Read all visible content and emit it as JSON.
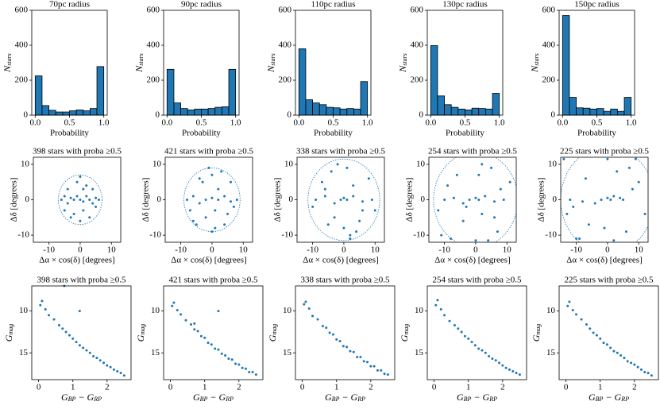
{
  "chart_data": [
    {
      "type": "histogram",
      "title": "70pc radius",
      "xlabel": "Probability",
      "ylabel": [
        "N",
        "stars"
      ],
      "color": "#1f77b4",
      "edgecolor": "#000000",
      "bins": [
        0,
        0.1,
        0.2,
        0.3,
        0.4,
        0.5,
        0.6,
        0.7,
        0.8,
        0.9,
        1.0
      ],
      "values": [
        225,
        55,
        28,
        18,
        18,
        25,
        30,
        25,
        38,
        278
      ],
      "xlim": [
        -0.05,
        1.05
      ],
      "ylim": [
        0,
        600
      ],
      "xticks": [
        {
          "value": 0,
          "label": "0.0"
        },
        0.5,
        {
          "value": 1,
          "label": "1.0"
        }
      ],
      "yticks": [
        0,
        200,
        400,
        600
      ]
    },
    {
      "type": "histogram",
      "title": "90pc radius",
      "xlabel": "Probability",
      "ylabel": [
        "N",
        "stars"
      ],
      "color": "#1f77b4",
      "edgecolor": "#000000",
      "bins": [
        0,
        0.1,
        0.2,
        0.3,
        0.4,
        0.5,
        0.6,
        0.7,
        0.8,
        0.9,
        1.0
      ],
      "values": [
        262,
        70,
        38,
        30,
        35,
        35,
        38,
        45,
        48,
        262
      ],
      "xlim": [
        -0.05,
        1.05
      ],
      "ylim": [
        0,
        600
      ],
      "xticks": [
        {
          "value": 0,
          "label": "0.0"
        },
        0.5,
        {
          "value": 1,
          "label": "1.0"
        }
      ],
      "yticks": [
        0,
        200,
        400,
        600
      ]
    },
    {
      "type": "histogram",
      "title": "110pc radius",
      "xlabel": "Probability",
      "ylabel": [
        "N",
        "stars"
      ],
      "color": "#1f77b4",
      "edgecolor": "#000000",
      "bins": [
        0,
        0.1,
        0.2,
        0.3,
        0.4,
        0.5,
        0.6,
        0.7,
        0.8,
        0.9,
        1.0
      ],
      "values": [
        380,
        88,
        70,
        60,
        45,
        42,
        35,
        38,
        35,
        192
      ],
      "xlim": [
        -0.05,
        1.05
      ],
      "ylim": [
        0,
        600
      ],
      "xticks": [
        {
          "value": 0,
          "label": "0.0"
        },
        0.5,
        {
          "value": 1,
          "label": "1.0"
        }
      ],
      "yticks": [
        0,
        200,
        400,
        600
      ]
    },
    {
      "type": "histogram",
      "title": "130pc radius",
      "xlabel": "Probability",
      "ylabel": [
        "N",
        "stars"
      ],
      "color": "#1f77b4",
      "edgecolor": "#000000",
      "bins": [
        0,
        0.1,
        0.2,
        0.3,
        0.4,
        0.5,
        0.6,
        0.7,
        0.8,
        0.9,
        1.0
      ],
      "values": [
        398,
        110,
        60,
        45,
        35,
        30,
        40,
        38,
        35,
        125
      ],
      "xlim": [
        -0.05,
        1.05
      ],
      "ylim": [
        0,
        600
      ],
      "xticks": [
        {
          "value": 0,
          "label": "0.0"
        },
        0.5,
        {
          "value": 1,
          "label": "1.0"
        }
      ],
      "yticks": [
        0,
        200,
        400,
        600
      ]
    },
    {
      "type": "histogram",
      "title": "150pc radius",
      "xlabel": "Probability",
      "ylabel": [
        "N",
        "stars"
      ],
      "color": "#1f77b4",
      "edgecolor": "#000000",
      "bins": [
        0,
        0.1,
        0.2,
        0.3,
        0.4,
        0.5,
        0.6,
        0.7,
        0.8,
        0.9,
        1.0
      ],
      "values": [
        570,
        102,
        42,
        40,
        35,
        38,
        22,
        35,
        22,
        102
      ],
      "xlim": [
        -0.05,
        1.05
      ],
      "ylim": [
        0,
        600
      ],
      "xticks": [
        {
          "value": 0,
          "label": "0.0"
        },
        0.5,
        {
          "value": 1,
          "label": "1.0"
        }
      ],
      "yticks": [
        0,
        200,
        400,
        600
      ]
    },
    {
      "type": "scatter",
      "title": "398 stars with proba ≥0.5",
      "xlabel": "Δα × cos(δ) [degrees]",
      "ylabel": "Δδ [degrees]",
      "color": "#1f77b4",
      "circle_radius": 7,
      "x": [
        -6,
        -5,
        -4,
        -3,
        -2,
        -1,
        0,
        1,
        2,
        3,
        4,
        5,
        6,
        -3,
        2,
        0,
        -1,
        1,
        -5,
        4,
        -2,
        3,
        0,
        -4,
        5,
        1
      ],
      "y": [
        0,
        1,
        -1,
        0.5,
        0,
        1,
        0,
        -0.5,
        1,
        0,
        -1,
        0.5,
        0,
        -5,
        4,
        -6,
        5,
        -3,
        -3,
        3,
        -4,
        -5,
        6.5,
        3,
        -2,
        3
      ],
      "xlim": [
        -15,
        13
      ],
      "ylim": [
        -12,
        12
      ],
      "xticks": [
        -10,
        0,
        10
      ],
      "yticks": [
        -10,
        0,
        10
      ]
    },
    {
      "type": "scatter",
      "title": "421 stars with proba ≥0.5",
      "xlabel": "Δα × cos(δ) [degrees]",
      "ylabel": "Δδ [degrees]",
      "color": "#1f77b4",
      "circle_radius": 9,
      "x": [
        -8,
        -6,
        -4,
        -2,
        0,
        2,
        4,
        6,
        8,
        -5,
        3,
        -1,
        1,
        -3,
        5,
        -7,
        6,
        0,
        -2,
        2,
        4,
        -4,
        7,
        -6,
        1,
        0
      ],
      "y": [
        0,
        1,
        -1,
        0,
        0.5,
        0,
        1,
        -0.5,
        0,
        -7,
        8,
        9,
        -8,
        5,
        -4,
        -3,
        5,
        -9,
        -5,
        3,
        -7,
        6,
        -2,
        -6,
        -3,
        7
      ],
      "xlim": [
        -15,
        13
      ],
      "ylim": [
        -12,
        12
      ],
      "xticks": [
        -10,
        0,
        10
      ],
      "yticks": [
        -10,
        0,
        10
      ]
    },
    {
      "type": "scatter",
      "title": "338 stars with proba ≥0.5",
      "xlabel": "Δα × cos(δ) [degrees]",
      "ylabel": "Δδ [degrees]",
      "color": "#1f77b4",
      "circle_radius": 11.5,
      "x": [
        -9,
        -6,
        -3,
        -1,
        0,
        1,
        3,
        6,
        9,
        -5,
        4,
        -2,
        2,
        -7,
        8,
        -10,
        10,
        0,
        -3,
        3,
        5,
        -6,
        1,
        -4,
        6,
        2
      ],
      "y": [
        0,
        1,
        -1,
        0,
        0.5,
        0,
        1,
        -0.5,
        0,
        -7,
        -9,
        10,
        -11,
        5,
        6,
        -2,
        -3,
        -8,
        -5,
        4,
        -6,
        3,
        9,
        8,
        -3,
        -10
      ],
      "xlim": [
        -15,
        13
      ],
      "ylim": [
        -12,
        12
      ],
      "xticks": [
        -10,
        0,
        10
      ],
      "yticks": [
        -10,
        0,
        10
      ]
    },
    {
      "type": "scatter",
      "title": "254 stars with proba ≥0.5",
      "xlabel": "Δα × cos(δ) [degrees]",
      "ylabel": "Δδ [degrees]",
      "color": "#1f77b4",
      "circle_radius": 13.5,
      "x": [
        -10,
        -7,
        -4,
        -2,
        0,
        1,
        3,
        6,
        9,
        -8,
        -11,
        4,
        2,
        -6,
        8,
        -12,
        11,
        0,
        -4,
        5,
        7,
        -9,
        1,
        -3,
        6,
        2
      ],
      "y": [
        0,
        0.5,
        -1,
        0,
        0.5,
        0,
        1,
        -0.5,
        0,
        -11,
        -10,
        -11.5,
        10,
        7,
        3,
        -3,
        5,
        -11.5,
        -6,
        9,
        -9,
        4,
        7,
        -2,
        -5,
        -4
      ],
      "xlim": [
        -15,
        13
      ],
      "ylim": [
        -12,
        12
      ],
      "xticks": [
        -10,
        0,
        10
      ],
      "yticks": [
        -10,
        0,
        10
      ]
    },
    {
      "type": "scatter",
      "title": "225 stars with proba ≥0.5",
      "xlabel": "Δα × cos(δ) [degrees]",
      "ylabel": "Δδ [degrees]",
      "color": "#1f77b4",
      "circle_radius": 15,
      "x": [
        -12,
        -8,
        -4,
        -2,
        0,
        1,
        2,
        4,
        5,
        -13,
        -10,
        -9,
        -14,
        -6,
        8,
        9,
        12,
        -1,
        3,
        6,
        -7,
        10,
        0,
        -11,
        7,
        2
      ],
      "y": [
        0,
        -0.5,
        -1,
        0,
        0.5,
        0,
        1,
        0.5,
        0,
        -4,
        -11,
        -11,
        11.5,
        -7,
        3,
        11.5,
        -4,
        -8,
        8,
        -9,
        6,
        5,
        11.5,
        -2,
        9,
        -11.5
      ],
      "xlim": [
        -15,
        13
      ],
      "ylim": [
        -12,
        12
      ],
      "xticks": [
        -10,
        0,
        10
      ],
      "yticks": [
        -10,
        0,
        10
      ]
    },
    {
      "type": "scatter",
      "title": "398 stars with proba ≥0.5",
      "xlabel": [
        "G",
        "BP",
        " − G",
        "RP"
      ],
      "ylabel": [
        "G",
        "mag"
      ],
      "color": "#1f77b4",
      "x": [
        0.05,
        0.1,
        0.2,
        0.3,
        0.45,
        0.6,
        0.7,
        0.8,
        0.9,
        1.0,
        1.1,
        1.2,
        1.3,
        1.4,
        1.5,
        1.6,
        1.7,
        1.8,
        1.9,
        2.0,
        2.1,
        2.2,
        2.3,
        2.4,
        2.5,
        1.2,
        0.75
      ],
      "y": [
        9.3,
        8.8,
        9.8,
        10.5,
        11.0,
        11.7,
        12.1,
        12.5,
        12.9,
        13.3,
        13.7,
        14.1,
        14.4,
        14.7,
        15.0,
        15.4,
        15.6,
        15.9,
        16.2,
        16.5,
        16.7,
        17.0,
        17.2,
        17.4,
        17.7,
        10.0,
        7.0
      ],
      "xlim": [
        -0.2,
        2.7
      ],
      "ylim": [
        18.2,
        7
      ],
      "xticks": [
        0,
        1,
        2
      ],
      "yticks": [
        10,
        15
      ]
    },
    {
      "type": "scatter",
      "title": "421 stars with proba ≥0.5",
      "xlabel": [
        "G",
        "BP",
        " − G",
        "RP"
      ],
      "ylabel": [
        "G",
        "mag"
      ],
      "color": "#1f77b4",
      "x": [
        0.05,
        0.1,
        0.2,
        0.3,
        0.45,
        0.6,
        0.7,
        0.8,
        0.9,
        1.0,
        1.1,
        1.2,
        1.3,
        1.4,
        1.5,
        1.6,
        1.7,
        1.8,
        1.9,
        2.0,
        2.1,
        2.2,
        2.3,
        2.4,
        2.5,
        1.4,
        0.7
      ],
      "y": [
        9.4,
        9.0,
        9.9,
        10.4,
        11.1,
        11.6,
        12.2,
        12.4,
        13.0,
        13.2,
        13.8,
        14.0,
        14.5,
        14.6,
        15.1,
        15.3,
        15.7,
        15.8,
        16.3,
        16.4,
        16.8,
        16.9,
        17.3,
        17.3,
        17.6,
        10.0,
        11.5
      ],
      "xlim": [
        -0.2,
        2.7
      ],
      "ylim": [
        18.2,
        7
      ],
      "xticks": [
        0,
        1,
        2
      ],
      "yticks": [
        10,
        15
      ]
    },
    {
      "type": "scatter",
      "title": "338 stars with proba ≥0.5",
      "xlabel": [
        "G",
        "BP",
        " − G",
        "RP"
      ],
      "ylabel": [
        "G",
        "mag"
      ],
      "color": "#1f77b4",
      "x": [
        0.05,
        0.1,
        0.2,
        0.3,
        0.45,
        0.6,
        0.7,
        0.8,
        0.9,
        1.0,
        1.1,
        1.2,
        1.3,
        1.4,
        1.5,
        1.6,
        1.7,
        1.8,
        1.9,
        2.0,
        2.1,
        2.2,
        2.3,
        2.4,
        2.5
      ],
      "y": [
        9.2,
        8.9,
        9.7,
        10.6,
        11.0,
        11.8,
        12.0,
        12.6,
        12.8,
        13.4,
        13.6,
        14.2,
        14.3,
        14.8,
        14.9,
        15.5,
        15.5,
        16.0,
        16.1,
        16.6,
        16.6,
        17.1,
        17.1,
        17.5,
        17.6
      ],
      "xlim": [
        -0.2,
        2.7
      ],
      "ylim": [
        18.2,
        7
      ],
      "xticks": [
        0,
        1,
        2
      ],
      "yticks": [
        10,
        15
      ]
    },
    {
      "type": "scatter",
      "title": "254 stars with proba ≥0.5",
      "xlabel": [
        "G",
        "BP",
        " − G",
        "RP"
      ],
      "ylabel": [
        "G",
        "mag"
      ],
      "color": "#1f77b4",
      "x": [
        0.05,
        0.1,
        0.2,
        0.3,
        0.45,
        0.6,
        0.7,
        0.8,
        0.9,
        1.0,
        1.1,
        1.2,
        1.3,
        1.4,
        1.5,
        1.6,
        1.7,
        1.8,
        1.9,
        2.0,
        2.1,
        2.2,
        2.3,
        2.4,
        2.5
      ],
      "y": [
        9.3,
        8.7,
        9.8,
        10.5,
        11.2,
        11.7,
        12.1,
        12.5,
        13.0,
        13.3,
        13.7,
        14.1,
        14.5,
        14.7,
        15.0,
        15.4,
        15.7,
        15.9,
        16.2,
        16.5,
        16.8,
        17.0,
        17.2,
        17.4,
        17.6
      ],
      "xlim": [
        -0.2,
        2.7
      ],
      "ylim": [
        18.2,
        7
      ],
      "xticks": [
        0,
        1,
        2
      ],
      "yticks": [
        10,
        15
      ]
    },
    {
      "type": "scatter",
      "title": "225 stars with proba ≥0.5",
      "xlabel": [
        "G",
        "BP",
        " − G",
        "RP"
      ],
      "ylabel": [
        "G",
        "mag"
      ],
      "color": "#1f77b4",
      "x": [
        0.05,
        0.1,
        0.2,
        0.3,
        0.45,
        0.6,
        0.7,
        0.8,
        0.9,
        1.0,
        1.1,
        1.2,
        1.3,
        1.4,
        1.5,
        1.6,
        1.7,
        1.8,
        1.9,
        2.0,
        2.1,
        2.2,
        2.3,
        2.4,
        2.5
      ],
      "y": [
        9.4,
        8.9,
        9.9,
        10.4,
        11.0,
        11.6,
        12.1,
        12.6,
        12.9,
        13.3,
        13.8,
        14.0,
        14.4,
        14.8,
        15.0,
        15.3,
        15.6,
        16.0,
        16.2,
        16.4,
        16.7,
        17.0,
        17.3,
        17.4,
        17.7
      ],
      "xlim": [
        -0.2,
        2.7
      ],
      "ylim": [
        18.2,
        7
      ],
      "xticks": [
        0,
        1,
        2
      ],
      "yticks": [
        10,
        15
      ]
    }
  ]
}
